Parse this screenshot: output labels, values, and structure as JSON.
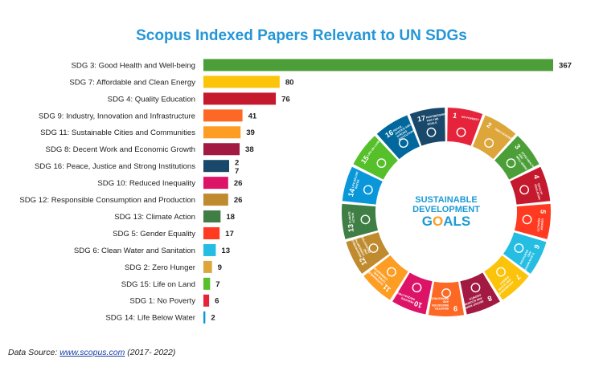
{
  "chart_data": {
    "type": "bar",
    "orientation": "horizontal",
    "title": "Scopus Indexed Papers Relevant to UN SDGs",
    "xlabel": "",
    "ylabel": "",
    "xlim": [
      0,
      367
    ],
    "grid": false,
    "legend": "none",
    "categories": [
      "SDG 3: Good Health and Well-being",
      "SDG 7: Affordable and Clean Energy",
      "SDG 4: Quality Education",
      "SDG 9: Industry, Innovation and Infrastructure",
      "SDG 11: Sustainable Cities and Communities",
      "SDG 8: Decent Work and Economic Growth",
      "SDG 16: Peace, Justice and Strong Institutions",
      "SDG 10: Reduced Inequality",
      "SDG 12: Responsible Consumption and Production",
      "SDG 13: Climate Action",
      "SDG 5: Gender Equality",
      "SDG 6: Clean Water and Sanitation",
      "SDG 2: Zero Hunger",
      "SDG 15: Life on Land",
      "SDG 1: No Poverty",
      "SDG 14: Life Below Water"
    ],
    "values": [
      367,
      80,
      76,
      41,
      39,
      38,
      27,
      26,
      26,
      18,
      17,
      13,
      9,
      7,
      6,
      2
    ],
    "value_labels": [
      "367",
      "80",
      "76",
      "41",
      "39",
      "38",
      "2\n7",
      "26",
      "26",
      "18",
      "17",
      "13",
      "9",
      "7",
      "6",
      "2"
    ],
    "colors": [
      "#4c9f38",
      "#fcc30b",
      "#c5192d",
      "#fd6925",
      "#fd9d24",
      "#a21942",
      "#19486a",
      "#dd1367",
      "#bf8b2e",
      "#3f7e44",
      "#ff3a21",
      "#26bde2",
      "#dda63a",
      "#56c02b",
      "#e5243b",
      "#0a97d9"
    ]
  },
  "source": {
    "prefix": "Data Source: ",
    "link": "www.scopus.com",
    "suffix": " (2017- 2022)"
  },
  "wheel": {
    "center_line1": "SUSTAINABLE",
    "center_line2": "DEVELOPMENT",
    "center_line3": "GOALS",
    "segments": [
      {
        "num": "1",
        "label": "NO POVERTY",
        "color": "#e5243b"
      },
      {
        "num": "2",
        "label": "ZERO HUNGER",
        "color": "#dda63a"
      },
      {
        "num": "3",
        "label": "GOOD HEALTH AND WELL-BEING",
        "color": "#4c9f38"
      },
      {
        "num": "4",
        "label": "QUALITY EDUCATION",
        "color": "#c5192d"
      },
      {
        "num": "5",
        "label": "GENDER EQUALITY",
        "color": "#ff3a21"
      },
      {
        "num": "6",
        "label": "CLEAN WATER AND SANITATION",
        "color": "#26bde2"
      },
      {
        "num": "7",
        "label": "AFFORDABLE AND CLEAN ENERGY",
        "color": "#fcc30b"
      },
      {
        "num": "8",
        "label": "DECENT WORK AND ECONOMIC GROWTH",
        "color": "#a21942"
      },
      {
        "num": "9",
        "label": "INDUSTRY, INNOVATION AND INFRASTRUCTURE",
        "color": "#fd6925"
      },
      {
        "num": "10",
        "label": "REDUCED INEQUALITIES",
        "color": "#dd1367"
      },
      {
        "num": "11",
        "label": "SUSTAINABLE CITIES AND COMMUNITIES",
        "color": "#fd9d24"
      },
      {
        "num": "12",
        "label": "RESPONSIBLE CONSUMPTION AND PRODUCTION",
        "color": "#bf8b2e"
      },
      {
        "num": "13",
        "label": "CLIMATE ACTION",
        "color": "#3f7e44"
      },
      {
        "num": "14",
        "label": "LIFE BELOW WATER",
        "color": "#0a97d9"
      },
      {
        "num": "15",
        "label": "LIFE ON LAND",
        "color": "#56c02b"
      },
      {
        "num": "16",
        "label": "PEACE, JUSTICE AND STRONG INSTITUTIONS",
        "color": "#00689d"
      },
      {
        "num": "17",
        "label": "PARTNERSHIPS FOR THE GOALS",
        "color": "#19486a"
      }
    ]
  }
}
